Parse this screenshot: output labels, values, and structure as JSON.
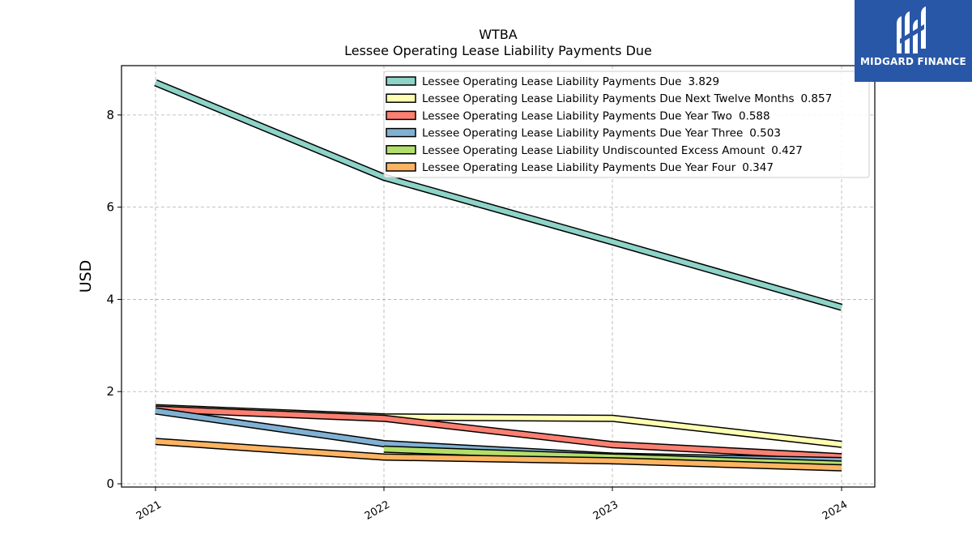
{
  "chart_data": {
    "type": "line",
    "title": "WTBA",
    "subtitle": "Lessee Operating Lease Liability Payments Due",
    "xlabel": "",
    "ylabel": "USD",
    "x": [
      "2021",
      "2022",
      "2023",
      "2024"
    ],
    "ylim": [
      -0.07,
      9.07
    ],
    "yticks": [
      0,
      2,
      4,
      6,
      8
    ],
    "grid": true,
    "legend_position": "top-right",
    "series": [
      {
        "name": "Lessee Operating Lease Liability Payments Due",
        "legend_value": "3.829",
        "color": "#8dd3c7",
        "values": [
          8.7,
          6.65,
          5.25,
          3.829
        ]
      },
      {
        "name": "Lessee Operating Lease Liability Payments Due Next Twelve Months",
        "legend_value": "0.857",
        "color": "#ffffb3",
        "values": [
          1.65,
          1.45,
          1.42,
          0.857
        ]
      },
      {
        "name": "Lessee Operating Lease Liability Payments Due Year Two",
        "legend_value": "0.588",
        "color": "#fb8072",
        "values": [
          1.62,
          1.42,
          0.85,
          0.588
        ]
      },
      {
        "name": "Lessee Operating Lease Liability Payments Due Year Three",
        "legend_value": "0.503",
        "color": "#80b1d3",
        "values": [
          1.58,
          0.87,
          0.6,
          0.503
        ]
      },
      {
        "name": "Lessee Operating Lease Liability Undiscounted Excess Amount",
        "legend_value": "0.427",
        "color": "#b3de69",
        "values": [
          null,
          0.75,
          0.58,
          0.427
        ]
      },
      {
        "name": "Lessee Operating Lease Liability Payments Due Year Four",
        "legend_value": "0.347",
        "color": "#fdb462",
        "values": [
          0.92,
          0.58,
          0.5,
          0.347
        ]
      }
    ]
  },
  "logo": {
    "text": "MIDGARD FINANCE"
  }
}
